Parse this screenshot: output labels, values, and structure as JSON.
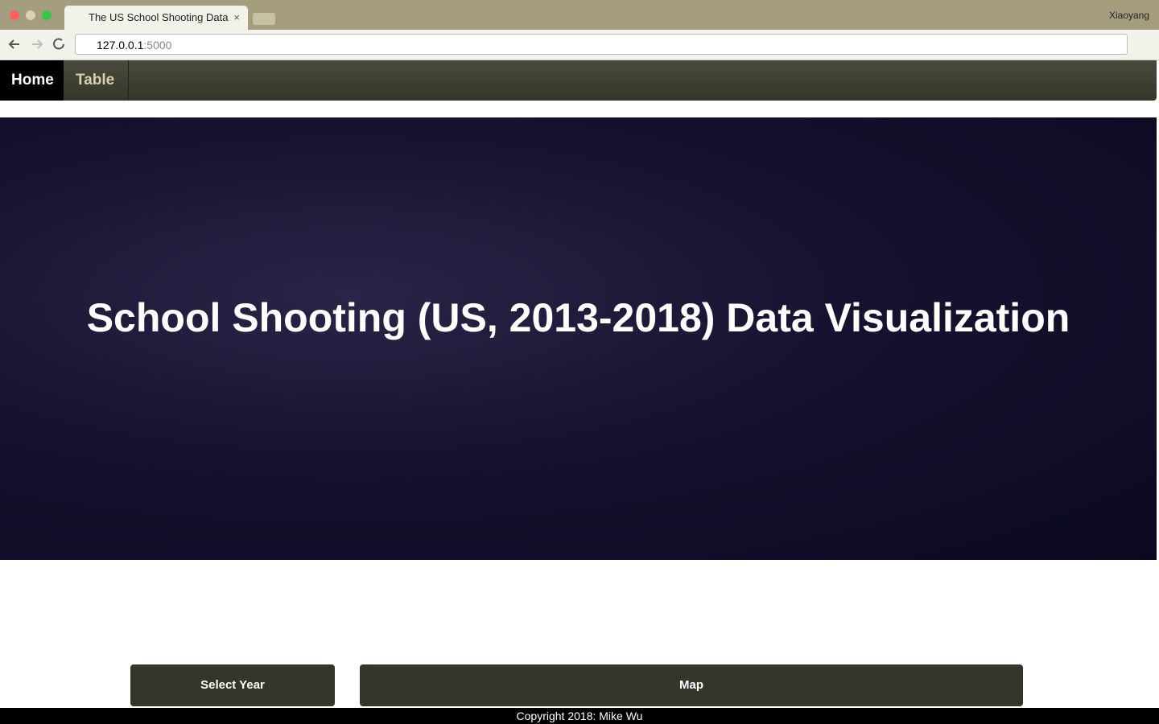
{
  "browser": {
    "tab_title": "The US School Shooting Data",
    "profile": "Xiaoyang",
    "url_host": "127.0.0.1",
    "url_port": ":5000"
  },
  "nav": {
    "items": [
      "Home",
      "Table"
    ]
  },
  "hero": {
    "title": "School Shooting (US, 2013-2018) Data Visualization"
  },
  "panels": {
    "left_title": "Select Year",
    "right_title": "Map"
  },
  "footer": {
    "text": "Copyright 2018: Mike Wu"
  }
}
